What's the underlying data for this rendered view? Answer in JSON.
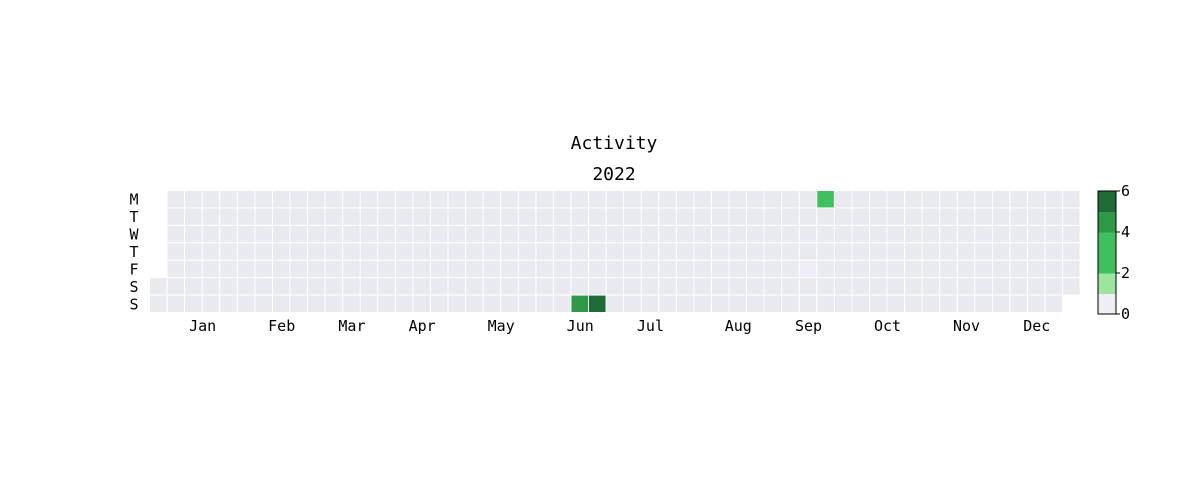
{
  "chart_data": {
    "type": "heatmap",
    "title": "Activity",
    "subtitle": "2022",
    "year": 2022,
    "day_labels": [
      "M",
      "T",
      "W",
      "T",
      "F",
      "S",
      "S"
    ],
    "month_labels": [
      "Jan",
      "Feb",
      "Mar",
      "Apr",
      "May",
      "Jun",
      "Jul",
      "Aug",
      "Sep",
      "Oct",
      "Nov",
      "Dec"
    ],
    "values": [
      {
        "date": "2022-06-19",
        "value": 5
      },
      {
        "date": "2022-06-26",
        "value": 6
      },
      {
        "date": "2022-09-16",
        "value": 1
      },
      {
        "date": "2022-09-19",
        "value": 3
      }
    ],
    "colorbar": {
      "ticks": [
        0,
        2,
        4,
        6
      ],
      "range": [
        0,
        6
      ],
      "bins": [
        {
          "from": 0,
          "to": 1,
          "color": "#efedf5"
        },
        {
          "from": 1,
          "to": 2,
          "color": "#9ce5a0"
        },
        {
          "from": 2,
          "to": 3,
          "color": "#3fc05f"
        },
        {
          "from": 3,
          "to": 4,
          "color": "#3fc05f"
        },
        {
          "from": 4,
          "to": 5,
          "color": "#2e9a48"
        },
        {
          "from": 5,
          "to": 6,
          "color": "#1f6b37"
        }
      ]
    },
    "empty_color": "#e8eaee",
    "grid": false,
    "legend": "right"
  }
}
